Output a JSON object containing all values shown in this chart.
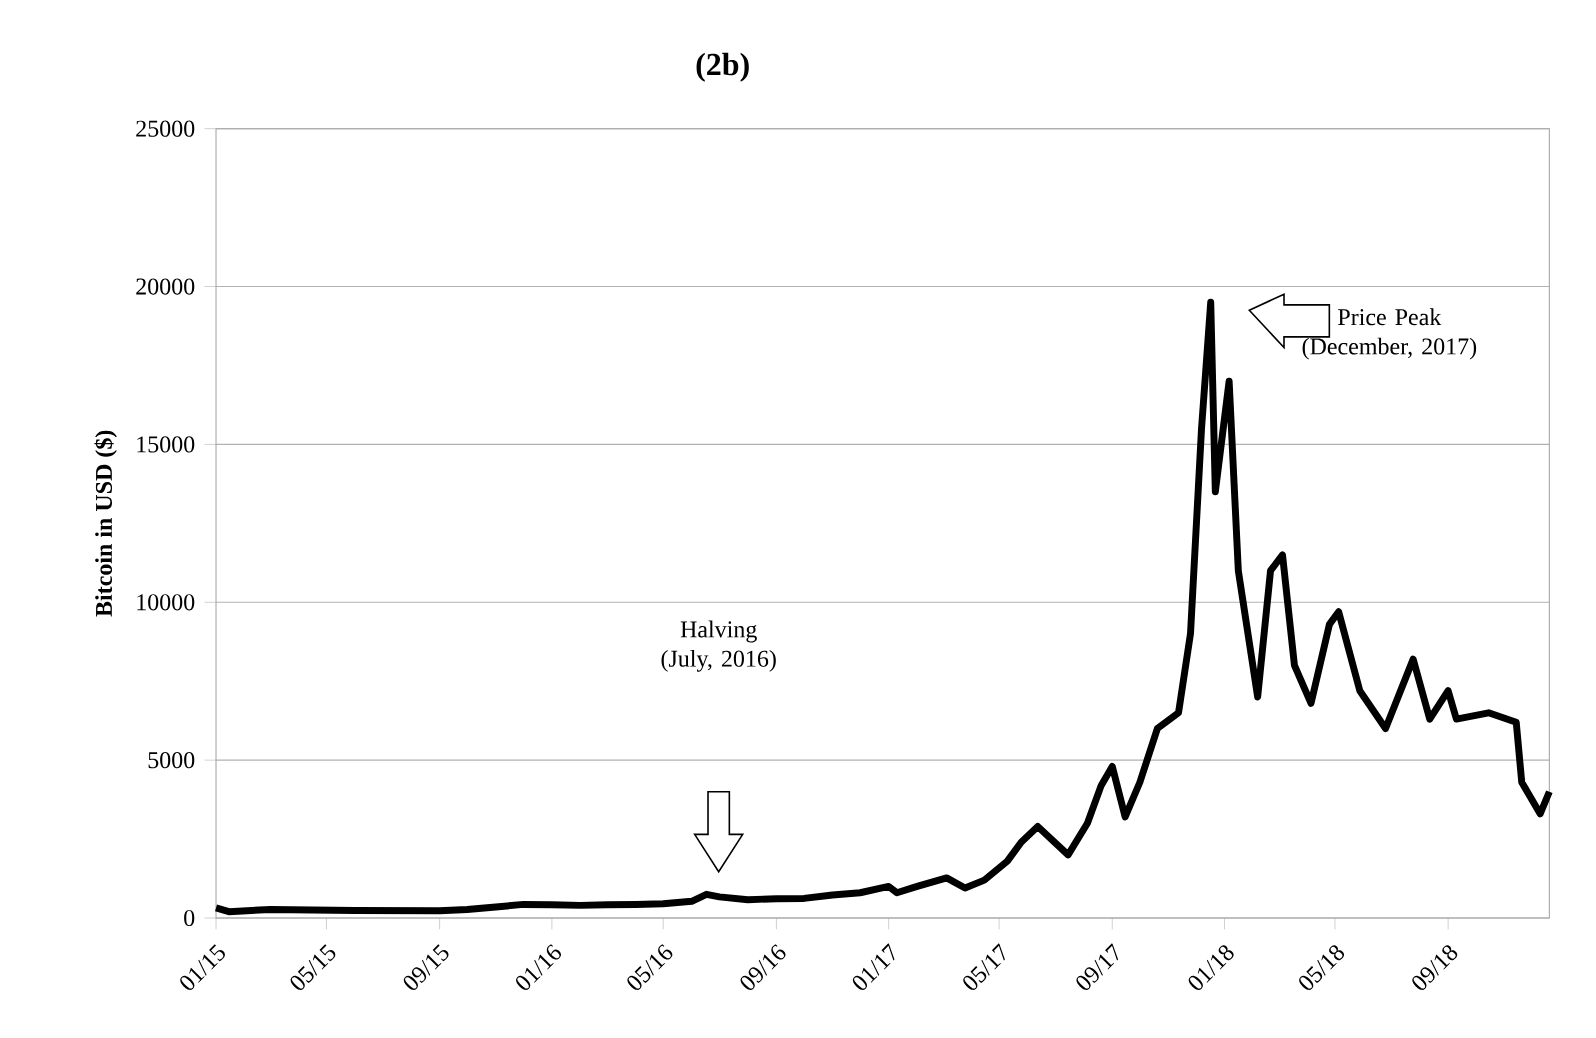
{
  "chart_data": {
    "type": "line",
    "title": "(2b)",
    "ylabel": "Bitcoin in USD ($)",
    "x": [
      "2015-01-01",
      "2015-01-15",
      "2015-03-01",
      "2015-06-01",
      "2015-09-01",
      "2015-10-01",
      "2015-11-01",
      "2015-12-01",
      "2016-01-01",
      "2016-02-01",
      "2016-03-01",
      "2016-04-01",
      "2016-05-01",
      "2016-06-01",
      "2016-06-17",
      "2016-07-01",
      "2016-08-01",
      "2016-09-01",
      "2016-10-01",
      "2016-11-01",
      "2016-12-01",
      "2017-01-01",
      "2017-01-10",
      "2017-02-01",
      "2017-03-05",
      "2017-03-25",
      "2017-04-15",
      "2017-05-10",
      "2017-05-25",
      "2017-06-12",
      "2017-07-15",
      "2017-08-05",
      "2017-08-20",
      "2017-09-01",
      "2017-09-15",
      "2017-10-01",
      "2017-10-20",
      "2017-11-12",
      "2017-11-25",
      "2017-12-07",
      "2017-12-17",
      "2017-12-22",
      "2018-01-06",
      "2018-01-16",
      "2018-02-06",
      "2018-02-20",
      "2018-03-05",
      "2018-03-18",
      "2018-04-05",
      "2018-04-25",
      "2018-05-05",
      "2018-05-28",
      "2018-06-25",
      "2018-07-25",
      "2018-08-12",
      "2018-09-01",
      "2018-09-10",
      "2018-10-15",
      "2018-11-14",
      "2018-11-20",
      "2018-12-10",
      "2018-12-20"
    ],
    "series": [
      {
        "color": "#000000",
        "values": [
          320,
          200,
          270,
          240,
          230,
          270,
          350,
          430,
          420,
          400,
          420,
          430,
          450,
          530,
          750,
          670,
          580,
          610,
          620,
          730,
          800,
          1000,
          800,
          1000,
          1270,
          950,
          1200,
          1800,
          2400,
          2900,
          2000,
          3000,
          4200,
          4800,
          3200,
          4300,
          6000,
          6500,
          9000,
          15500,
          19500,
          13500,
          17000,
          11000,
          7000,
          11000,
          11500,
          8000,
          6800,
          9300,
          9700,
          7200,
          6000,
          8200,
          6300,
          7200,
          6300,
          6500,
          6200,
          4300,
          3300,
          4000
        ]
      }
    ],
    "xlim": [
      "2015-01-01",
      "2018-12-20"
    ],
    "xticks": [
      {
        "value": "2015-01-01",
        "label": "01/15"
      },
      {
        "value": "2015-05-01",
        "label": "05/15"
      },
      {
        "value": "2015-09-01",
        "label": "09/15"
      },
      {
        "value": "2016-01-01",
        "label": "01/16"
      },
      {
        "value": "2016-05-01",
        "label": "05/16"
      },
      {
        "value": "2016-09-01",
        "label": "09/16"
      },
      {
        "value": "2017-01-01",
        "label": "01/17"
      },
      {
        "value": "2017-05-01",
        "label": "05/17"
      },
      {
        "value": "2017-09-01",
        "label": "09/17"
      },
      {
        "value": "2018-01-01",
        "label": "01/18"
      },
      {
        "value": "2018-05-01",
        "label": "05/18"
      },
      {
        "value": "2018-09-01",
        "label": "09/18"
      }
    ],
    "ylim": [
      0,
      25000
    ],
    "yticks": [
      0,
      5000,
      10000,
      15000,
      20000,
      25000
    ],
    "grid": "y",
    "marker": "none",
    "line_style": "solid",
    "annotations": [
      "Halving (July, 2016)",
      "Price Peak (December, 2017)"
    ]
  }
}
